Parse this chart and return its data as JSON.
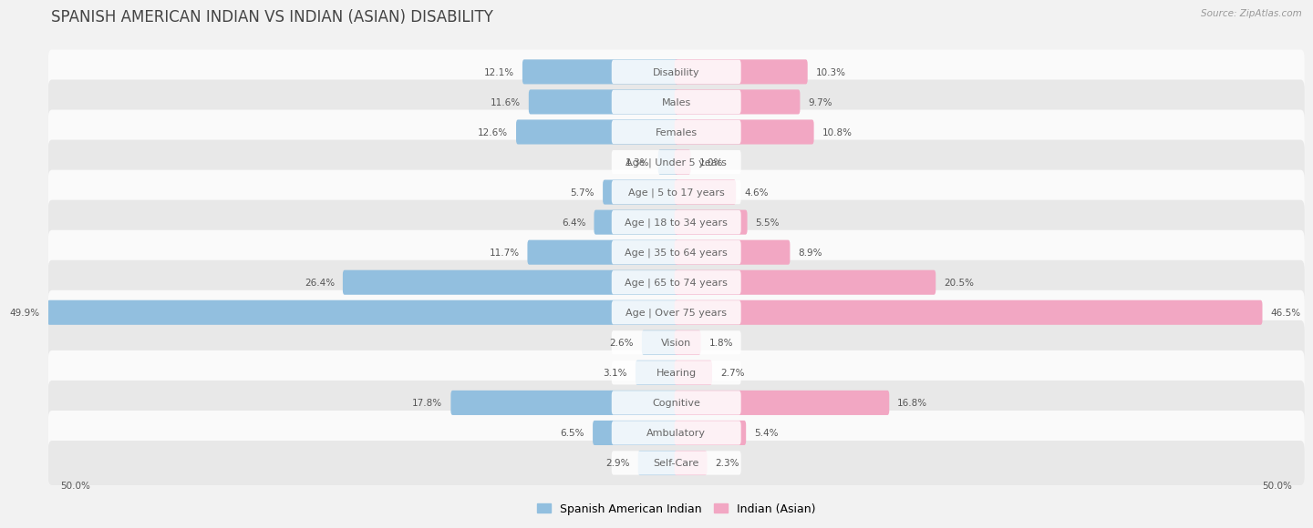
{
  "title": "SPANISH AMERICAN INDIAN VS INDIAN (ASIAN) DISABILITY",
  "source": "Source: ZipAtlas.com",
  "categories": [
    "Disability",
    "Males",
    "Females",
    "Age | Under 5 years",
    "Age | 5 to 17 years",
    "Age | 18 to 34 years",
    "Age | 35 to 64 years",
    "Age | 65 to 74 years",
    "Age | Over 75 years",
    "Vision",
    "Hearing",
    "Cognitive",
    "Ambulatory",
    "Self-Care"
  ],
  "left_values": [
    12.1,
    11.6,
    12.6,
    1.3,
    5.7,
    6.4,
    11.7,
    26.4,
    49.9,
    2.6,
    3.1,
    17.8,
    6.5,
    2.9
  ],
  "right_values": [
    10.3,
    9.7,
    10.8,
    1.0,
    4.6,
    5.5,
    8.9,
    20.5,
    46.5,
    1.8,
    2.7,
    16.8,
    5.4,
    2.3
  ],
  "left_color": "#92bfdf",
  "right_color": "#f2a7c3",
  "left_label": "Spanish American Indian",
  "right_label": "Indian (Asian)",
  "axis_max": 50.0,
  "background_color": "#f2f2f2",
  "row_bg_light": "#fafafa",
  "row_bg_dark": "#e8e8e8",
  "title_fontsize": 12,
  "label_fontsize": 8,
  "value_fontsize": 7.5,
  "legend_fontsize": 9
}
